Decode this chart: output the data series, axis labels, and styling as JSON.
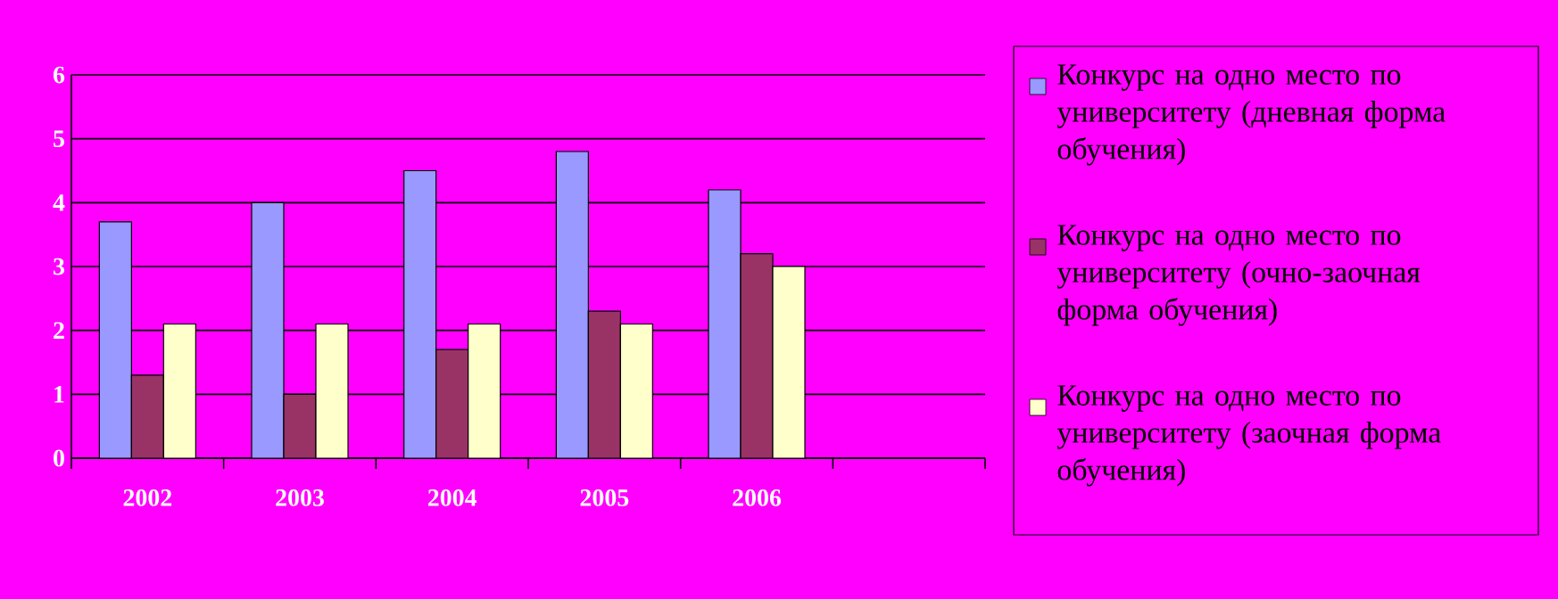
{
  "chart_data": {
    "type": "bar",
    "categories": [
      "2002",
      "2003",
      "2004",
      "2005",
      "2006",
      null
    ],
    "series": [
      {
        "name": "Конкурс на одно место по университету (дневная форма обучения)",
        "color": "#9999ff",
        "values": [
          3.7,
          4.0,
          4.5,
          4.8,
          4.2,
          null
        ]
      },
      {
        "name": "Конкурс на одно место по университету (очно-заочная форма обучения)",
        "color": "#993366",
        "values": [
          1.3,
          1.0,
          1.7,
          2.3,
          3.2,
          null
        ]
      },
      {
        "name": "Конкурс на одно место по университету (заочная форма обучения)",
        "color": "#ffffcc",
        "values": [
          2.1,
          2.1,
          2.1,
          2.1,
          3.0,
          null
        ]
      }
    ],
    "ylim": [
      0,
      6
    ],
    "yticks": [
      0,
      1,
      2,
      3,
      4,
      5,
      6
    ],
    "grid": "y",
    "legend": "right"
  }
}
